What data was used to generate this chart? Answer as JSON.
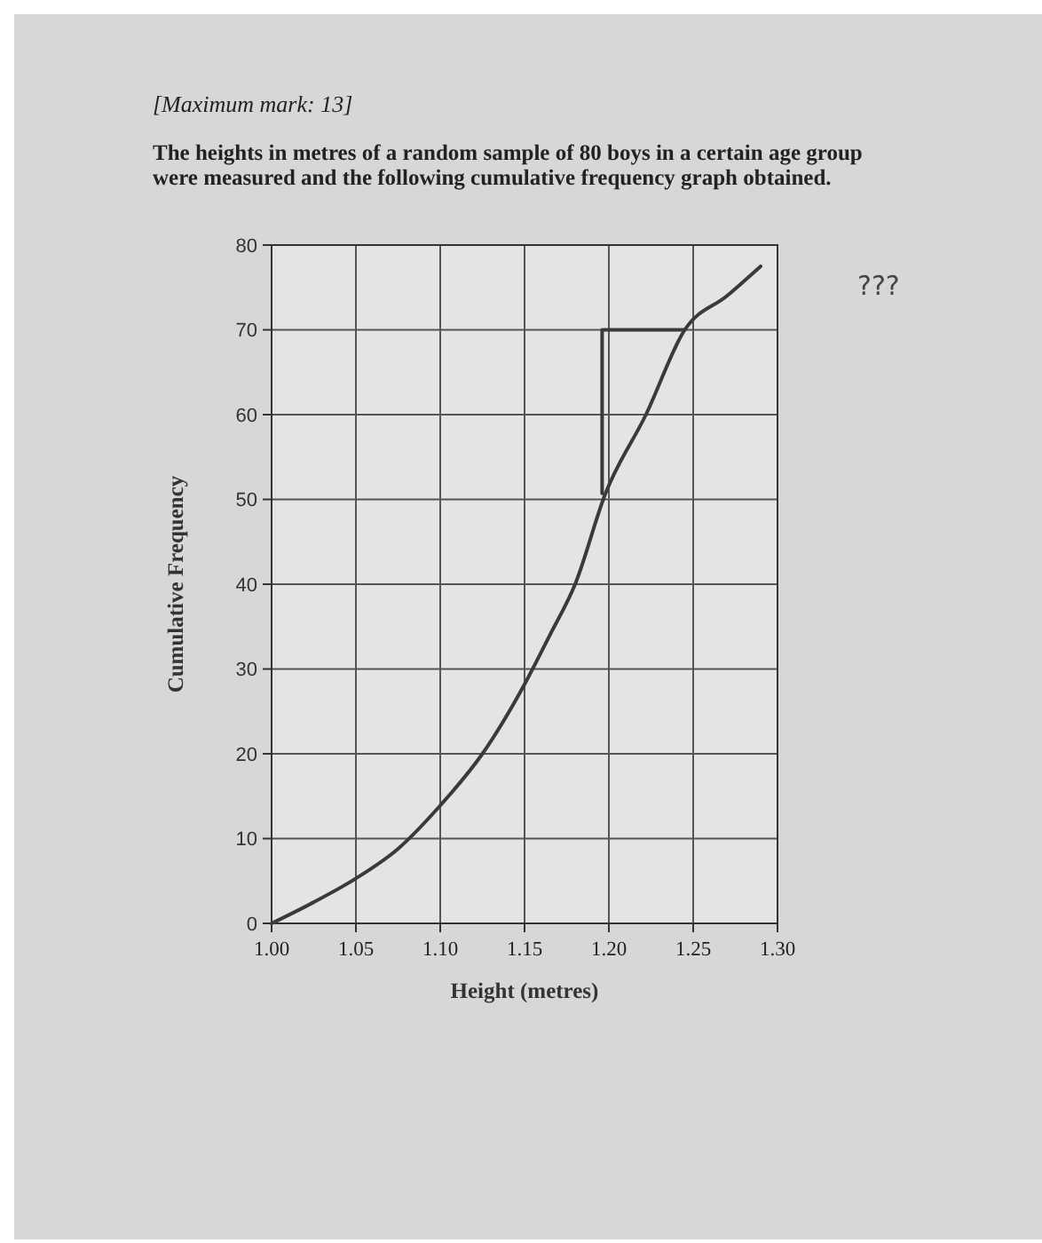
{
  "chart_data": {
    "type": "line",
    "title": "[Maximum mark: 13]",
    "subtitle": "The heights in metres of a random sample of 80 boys in a certain age group were measured and the following cumulative frequency graph obtained.",
    "xlabel": "Height (metres)",
    "ylabel": "Cumulative Frequency",
    "x": [
      1.0,
      1.025,
      1.05,
      1.075,
      1.1,
      1.125,
      1.15,
      1.165,
      1.18,
      1.198,
      1.222,
      1.245,
      1.27,
      1.29
    ],
    "series": [
      {
        "color": "#3a3a3a",
        "values": [
          0,
          2.5,
          5.3,
          8.8,
          13.9,
          20,
          28.2,
          34,
          40,
          50.7,
          60,
          70,
          74,
          77.5
        ]
      },
      {
        "type": "step",
        "color": "#3a3a3a",
        "x": [
          1.196,
          1.245
        ],
        "values": [
          50.7,
          70
        ]
      }
    ],
    "xlim": [
      1.0,
      1.3
    ],
    "ylim": [
      0,
      80
    ],
    "xticks": [
      {
        "value": 1.0,
        "label": "1.00"
      },
      1.05,
      {
        "value": 1.1,
        "label": "1.10"
      },
      1.15,
      {
        "value": 1.2,
        "label": "1.20"
      },
      1.25,
      {
        "value": 1.3,
        "label": "1.30"
      }
    ],
    "yticks": [
      0,
      10,
      20,
      30,
      40,
      50,
      60,
      70,
      80
    ],
    "grid": true,
    "marker": "none",
    "line_style": "solid",
    "annotations": [
      "???"
    ]
  }
}
